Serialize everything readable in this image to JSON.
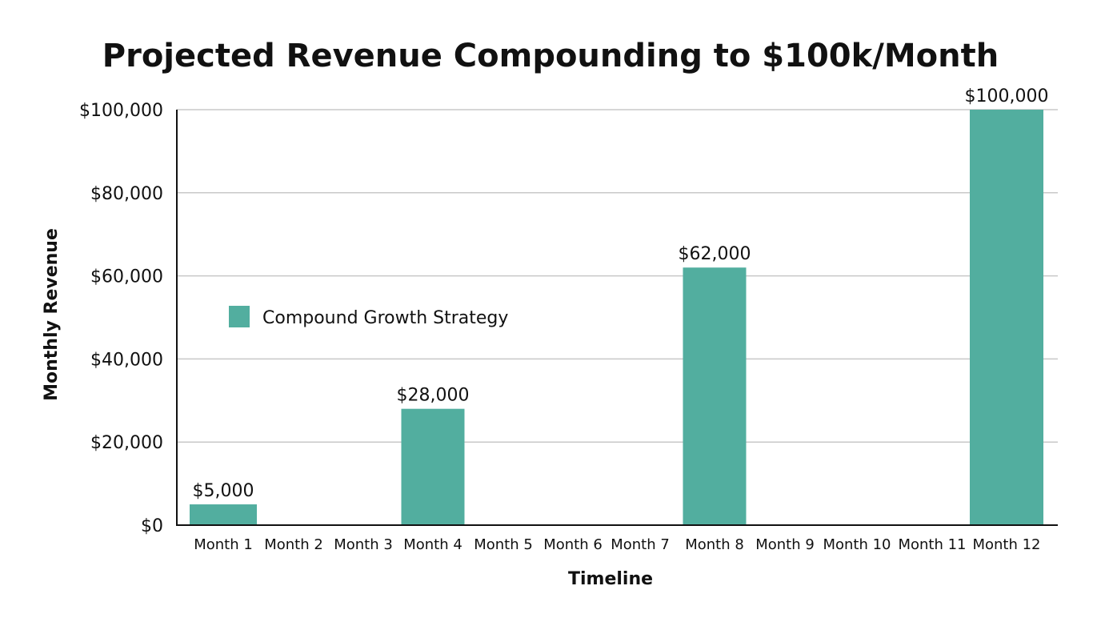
{
  "chart_data": {
    "type": "bar",
    "title": "Projected Revenue Compounding to $100k/Month",
    "xlabel": "Timeline",
    "ylabel": "Monthly Revenue",
    "categories": [
      "Month 1",
      "Month 2",
      "Month 3",
      "Month 4",
      "Month 5",
      "Month 6",
      "Month 7",
      "Month 8",
      "Month 9",
      "Month 10",
      "Month 11",
      "Month 12"
    ],
    "series": [
      {
        "name": "Compound Growth Strategy",
        "color": "#52ae9f",
        "values": [
          5000,
          null,
          null,
          28000,
          null,
          null,
          null,
          62000,
          null,
          null,
          null,
          100000
        ],
        "data_labels": [
          "$5,000",
          "",
          "",
          "$28,000",
          "",
          "",
          "",
          "$62,000",
          "",
          "",
          "",
          "$100,000"
        ]
      }
    ],
    "ylim": [
      0,
      100000
    ],
    "yticks": [
      0,
      20000,
      40000,
      60000,
      80000,
      100000
    ],
    "ytick_labels": [
      "$0",
      "$20,000",
      "$40,000",
      "$60,000",
      "$80,000",
      "$100,000"
    ],
    "grid": true,
    "legend_placement": "upper-left inside"
  }
}
